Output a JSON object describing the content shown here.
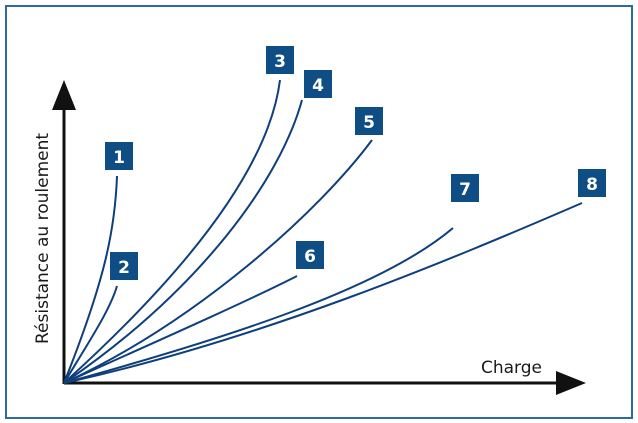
{
  "chart_data": {
    "type": "line",
    "title": "",
    "xlabel": "Charge",
    "ylabel": "Résistance au roulement",
    "grid": false,
    "colors": {
      "frame": "#2d6b9c",
      "line": "#0e3f7d",
      "badge": "#0f4d85",
      "badge_text": "#ffffff",
      "axis": "#111111"
    },
    "series": [
      {
        "label": "1"
      },
      {
        "label": "2"
      },
      {
        "label": "3"
      },
      {
        "label": "4"
      },
      {
        "label": "5"
      },
      {
        "label": "6"
      },
      {
        "label": "7"
      },
      {
        "label": "8"
      }
    ]
  }
}
